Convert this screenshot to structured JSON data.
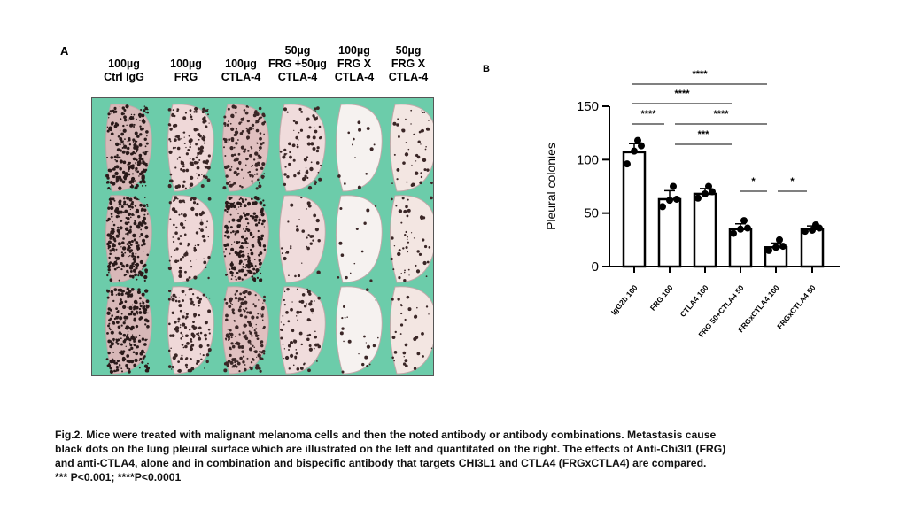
{
  "panel_a": {
    "letter": "A",
    "columns": [
      "100µg\nCtrl IgG",
      "100µg\nFRG",
      "100µg\nCTLA-4",
      "50µg\nFRG +50µg\nCTLA-4",
      "100µg\nFRG X\nCTLA-4",
      "50µg\nFRG X\nCTLA-4"
    ],
    "background_color": "#6cccaa"
  },
  "panel_b": {
    "letter": "B"
  },
  "chart_data": {
    "type": "bar",
    "title": "",
    "xlabel": "",
    "ylabel": "Pleural colonies",
    "ylim": [
      0,
      150
    ],
    "yticks": [
      0,
      50,
      100,
      150
    ],
    "categories": [
      "IgG2b 100",
      "FRG 100",
      "CTLA4 100",
      "FRG 50+CTLA4 50",
      "FRGxCTLA4 100",
      "FRGxCTLA4 50"
    ],
    "values": [
      107,
      63,
      68,
      35,
      18,
      35
    ],
    "errors": [
      8,
      8,
      5,
      5,
      4,
      3
    ],
    "points": [
      [
        96,
        108,
        113,
        118
      ],
      [
        56,
        62,
        63,
        75
      ],
      [
        64,
        68,
        70,
        75
      ],
      [
        31,
        35,
        36,
        43
      ],
      [
        15,
        18,
        19,
        25
      ],
      [
        33,
        34,
        36,
        39
      ]
    ],
    "significance": [
      {
        "from": 0,
        "to": 4,
        "label": "****"
      },
      {
        "from": 0,
        "to": 3,
        "label": "****"
      },
      {
        "from": 0,
        "to": 1,
        "label": "****"
      },
      {
        "from": 1,
        "to": 4,
        "label": "****"
      },
      {
        "from": 1,
        "to": 3,
        "label": "***"
      },
      {
        "from": 3,
        "to": 4,
        "label": "*"
      },
      {
        "from": 4,
        "to": 5,
        "label": "*"
      }
    ],
    "grid": false
  },
  "caption": {
    "lines": [
      "Fig.2. Mice were treated with malignant melanoma cells and then the noted antibody or antibody combinations.  Metastasis cause",
      "black dots on the lung pleural surface which are illustrated on the left and quantitated on the right. The effects of Anti-Chi3l1 (FRG)",
      "and anti-CTLA4, alone and in combination and bispecific antibody that targets CHI3L1 and CTLA4 (FRGxCTLA4) are compared.",
      "*** P<0.001;  ****P<0.0001"
    ]
  }
}
